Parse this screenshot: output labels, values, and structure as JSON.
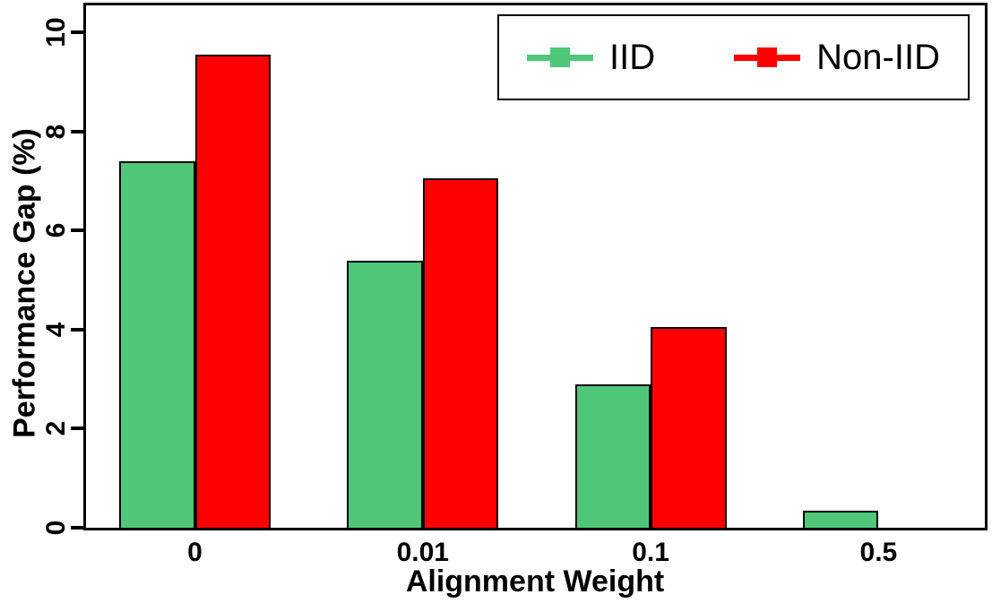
{
  "chart_data": {
    "type": "bar",
    "title": "",
    "xlabel": "Alignment Weight",
    "ylabel": "Performance Gap (%)",
    "categories": [
      "0",
      "0.01",
      "0.1",
      "0.5"
    ],
    "series": [
      {
        "name": "IID",
        "color": "#4EC878",
        "values": [
          7.4,
          5.4,
          2.9,
          0.35
        ]
      },
      {
        "name": "Non-IID",
        "color": "#FF0000",
        "values": [
          9.55,
          7.05,
          4.05,
          0
        ]
      }
    ],
    "yticks": [
      0,
      2,
      4,
      6,
      8,
      10
    ],
    "ylim": [
      0,
      10.55
    ],
    "grid": false,
    "legend_position": "top-right",
    "legend_marker": "square-on-line",
    "bar_border_color": "#000000",
    "axis_color": "#000000",
    "background_color": "#FFFFFF"
  }
}
